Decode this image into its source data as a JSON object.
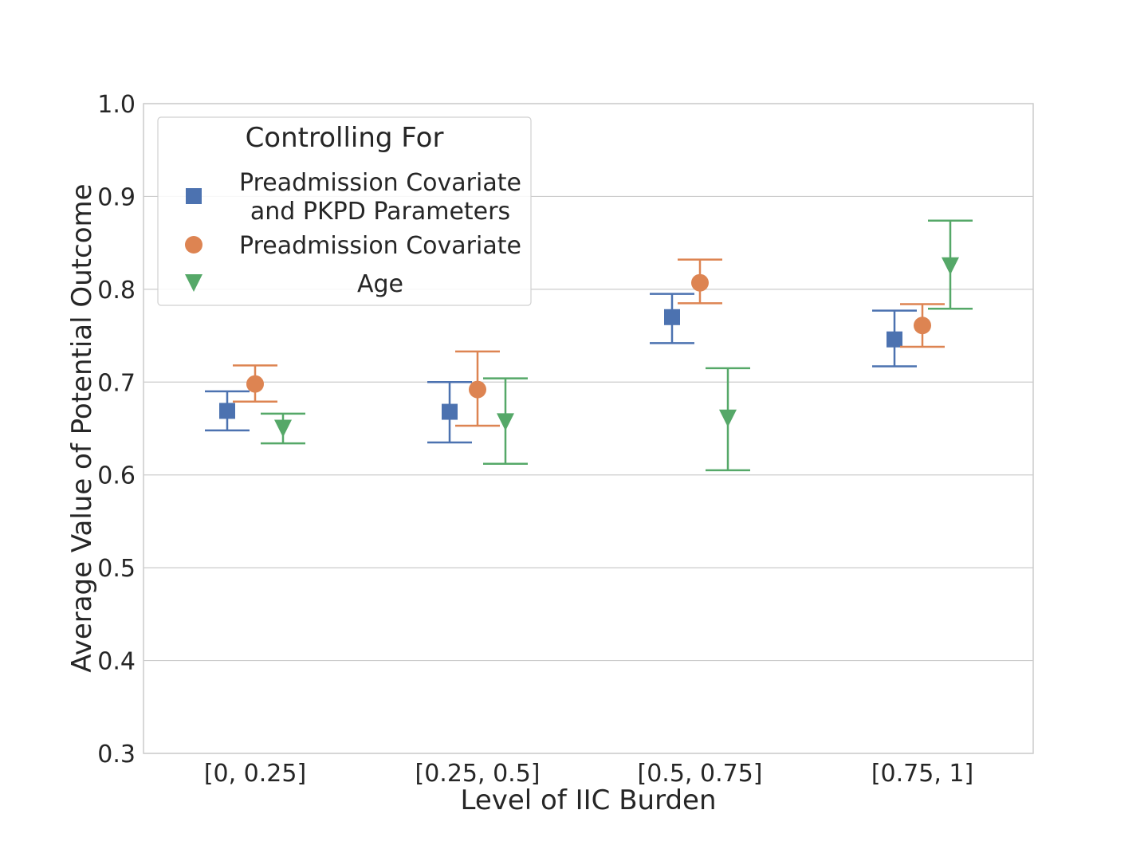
{
  "chart_data": {
    "type": "scatter",
    "xlabel": "Level of IIC Burden",
    "ylabel": "Average Value of Potential Outcome",
    "categories": [
      "[0, 0.25]",
      "[0.25, 0.5]",
      "[0.5, 0.75]",
      "[0.75, 1]"
    ],
    "ylim": [
      0.3,
      1.0
    ],
    "yticks": [
      0.3,
      0.4,
      0.5,
      0.6,
      0.7,
      0.8,
      0.9,
      1.0
    ],
    "ytick_labels": [
      "0.3",
      "0.4",
      "0.5",
      "0.6",
      "0.7",
      "0.8",
      "0.9",
      "1.0"
    ],
    "grid": "horizontal",
    "legend": {
      "title": "Controlling For",
      "placement": "top-left"
    },
    "series": [
      {
        "name": "Preadmission Covariate and PKPD Parameters",
        "legend_lines": [
          "Preadmission Covariate",
          "and PKPD Parameters"
        ],
        "marker": "square",
        "color": "#4c72b0",
        "values": [
          0.669,
          0.668,
          0.77,
          0.746
        ],
        "lower": [
          0.648,
          0.635,
          0.742,
          0.717
        ],
        "upper": [
          0.69,
          0.7,
          0.795,
          0.777
        ]
      },
      {
        "name": "Preadmission Covariate",
        "legend_lines": [
          "Preadmission Covariate"
        ],
        "marker": "circle",
        "color": "#dd8452",
        "values": [
          0.698,
          0.692,
          0.807,
          0.761
        ],
        "lower": [
          0.679,
          0.653,
          0.785,
          0.738
        ],
        "upper": [
          0.718,
          0.733,
          0.832,
          0.784
        ]
      },
      {
        "name": "Age",
        "legend_lines": [
          "Age"
        ],
        "marker": "triangle-down",
        "color": "#55a868",
        "values": [
          0.65,
          0.657,
          0.661,
          0.825
        ],
        "lower": [
          0.634,
          0.612,
          0.605,
          0.779
        ],
        "upper": [
          0.666,
          0.704,
          0.715,
          0.874
        ]
      }
    ]
  }
}
